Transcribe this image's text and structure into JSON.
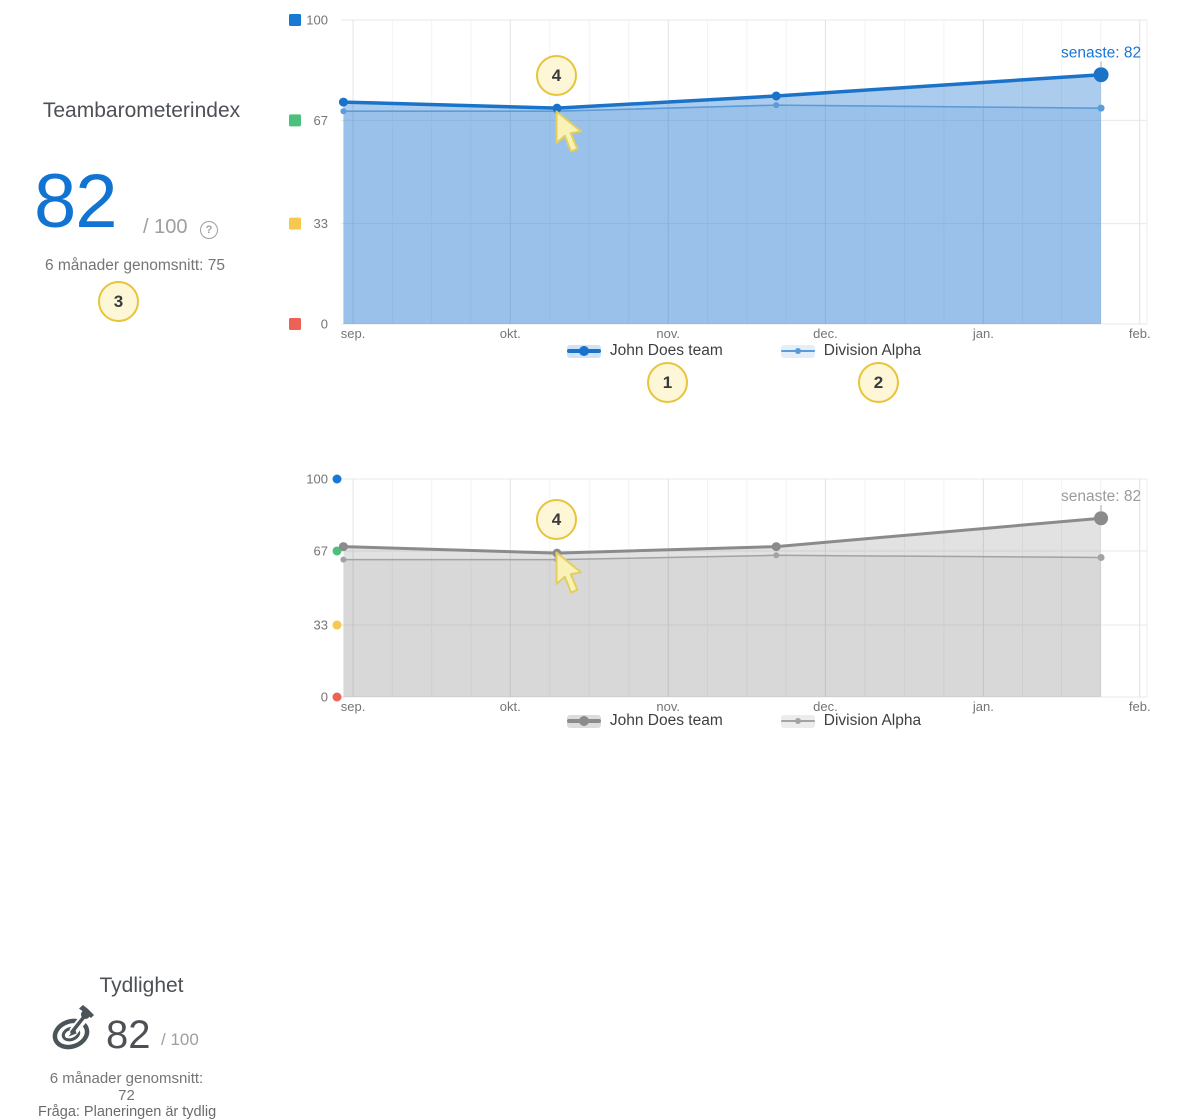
{
  "panels": {
    "teamindex": {
      "title": "Teambarometerindex",
      "score": "82",
      "denominator": "/ 100",
      "help_glyph": "?",
      "average": "6 månader genomsnitt: 75"
    },
    "tydlighet": {
      "title": "Tydlighet",
      "score": "82",
      "denominator": "/ 100",
      "average": "6 månader genomsnitt: 72",
      "question": "Fråga: Planeringen är tydlig"
    }
  },
  "badges": [
    "1",
    "2",
    "3",
    "4",
    "4"
  ],
  "chart_data": [
    {
      "type": "area",
      "title": "Teambarometerindex",
      "ylim": [
        0,
        100
      ],
      "grid": true,
      "legend_position": "bottom",
      "tick_marker": "square-left",
      "yticks": [
        {
          "value": 100,
          "color": "#1779d3"
        },
        {
          "value": 67,
          "color": "#4ec07d"
        },
        {
          "value": 33,
          "color": "#f6c94e"
        },
        {
          "value": 0,
          "color": "#ee6157"
        }
      ],
      "xticks": [
        {
          "label": "sep.",
          "f": 0.015
        },
        {
          "label": "okt.",
          "f": 0.21
        },
        {
          "label": "nov.",
          "f": 0.406
        },
        {
          "label": "dec.",
          "f": 0.601
        },
        {
          "label": "jan.",
          "f": 0.797
        },
        {
          "label": "feb.",
          "f": 0.991
        }
      ],
      "annotation": {
        "text": "senaste: 82",
        "color": "#1976d2"
      },
      "series": [
        {
          "name": "John Does team",
          "color": "#1a73c8",
          "fill": "rgba(25,115,205,0.36)",
          "legend_bg": "#cfe2f6",
          "width": 3.5,
          "dot": 4.5,
          "last_dot": 7.5,
          "points": [
            {
              "f": 0.003,
              "v": 73
            },
            {
              "f": 0.268,
              "v": 71
            },
            {
              "f": 0.54,
              "v": 75
            },
            {
              "f": 0.943,
              "v": 82
            }
          ]
        },
        {
          "name": "Division Alpha",
          "color": "#5b9bd8",
          "fill": "rgba(25,115,205,0.12)",
          "legend_bg": "#e4eefa",
          "width": 1.6,
          "dot": 3,
          "last_dot": 3.5,
          "points": [
            {
              "f": 0.003,
              "v": 70
            },
            {
              "f": 0.268,
              "v": 70
            },
            {
              "f": 0.54,
              "v": 72
            },
            {
              "f": 0.943,
              "v": 71
            }
          ]
        }
      ]
    },
    {
      "type": "area",
      "title": "Tydlighet",
      "ylim": [
        0,
        100
      ],
      "grid": true,
      "legend_position": "bottom",
      "tick_marker": "dot-right",
      "yticks": [
        {
          "value": 100,
          "color": "#1779d3"
        },
        {
          "value": 67,
          "color": "#4ec07d"
        },
        {
          "value": 33,
          "color": "#f6c94e"
        },
        {
          "value": 0,
          "color": "#ee6157"
        }
      ],
      "xticks": [
        {
          "label": "sep.",
          "f": 0.015
        },
        {
          "label": "okt.",
          "f": 0.21
        },
        {
          "label": "nov.",
          "f": 0.406
        },
        {
          "label": "dec.",
          "f": 0.601
        },
        {
          "label": "jan.",
          "f": 0.797
        },
        {
          "label": "feb.",
          "f": 0.991
        }
      ],
      "annotation": {
        "text": "senaste: 82",
        "color": "#9b9b9b"
      },
      "series": [
        {
          "name": "John Does team",
          "color": "#8b8b8b",
          "fill": "rgba(125,125,125,0.22)",
          "legend_bg": "#dcdcdc",
          "width": 3,
          "dot": 4.5,
          "last_dot": 7,
          "points": [
            {
              "f": 0.003,
              "v": 69
            },
            {
              "f": 0.268,
              "v": 66
            },
            {
              "f": 0.54,
              "v": 69
            },
            {
              "f": 0.943,
              "v": 82
            }
          ]
        },
        {
          "name": "Division Alpha",
          "color": "#a3a3a3",
          "fill": "rgba(125,125,125,0.10)",
          "legend_bg": "#ececec",
          "width": 1.5,
          "dot": 3,
          "last_dot": 3.5,
          "points": [
            {
              "f": 0.003,
              "v": 63
            },
            {
              "f": 0.268,
              "v": 63
            },
            {
              "f": 0.54,
              "v": 65
            },
            {
              "f": 0.943,
              "v": 64
            }
          ]
        }
      ]
    }
  ]
}
